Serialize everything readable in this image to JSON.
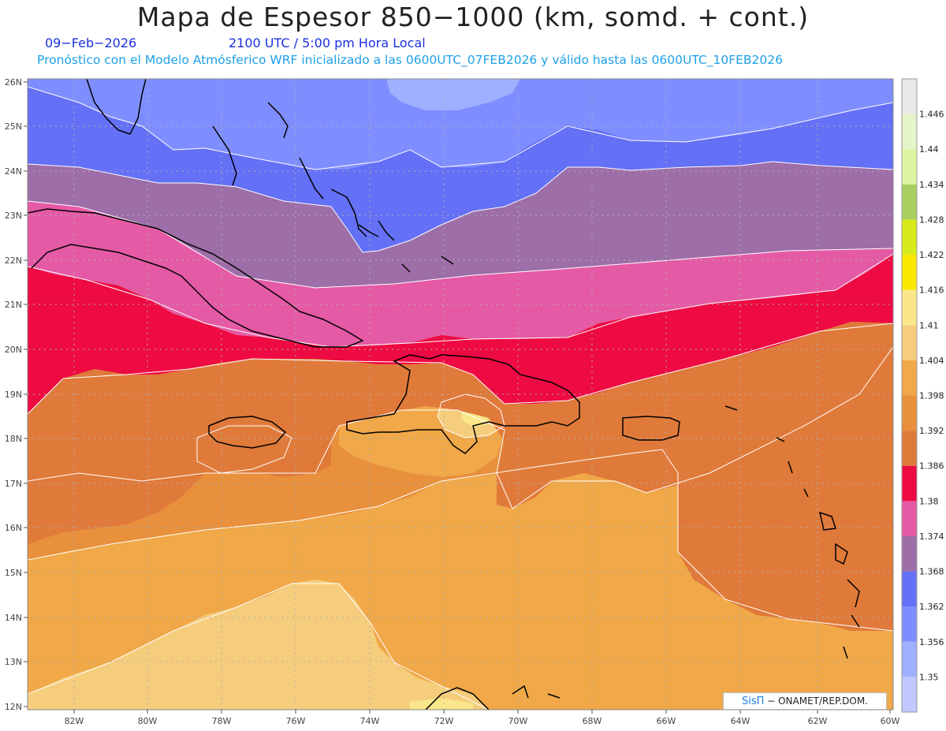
{
  "header": {
    "title": "Mapa de Espesor 850−1000 (km, somd. + cont.)",
    "date": "09−Feb−2026",
    "time": "2100 UTC / 5:00 pm Hora Local",
    "forecast_line": "Pronóstico con el Modelo Atmósferico WRF inicializado a las 0600UTC_07FEB2026 y válido hasta las  0600UTC_10FEB2026"
  },
  "axes": {
    "lat_labels": [
      "26N",
      "25N",
      "24N",
      "23N",
      "22N",
      "21N",
      "20N",
      "19N",
      "18N",
      "17N",
      "16N",
      "15N",
      "14N",
      "13N",
      "12N"
    ],
    "lon_labels": [
      "82W",
      "80W",
      "78W",
      "76W",
      "74W",
      "72W",
      "70W",
      "68W",
      "66W",
      "64W",
      "62W",
      "60W"
    ]
  },
  "legend": {
    "levels": [
      "1.35",
      "1.356",
      "1.362",
      "1.368",
      "1.374",
      "1.38",
      "1.386",
      "1.392",
      "1.398",
      "1.404",
      "1.41",
      "1.416",
      "1.422",
      "1.428",
      "1.434",
      "1.44",
      "1.446"
    ],
    "colors": [
      "#c0c8ff",
      "#9eb0ff",
      "#7f8eff",
      "#6470f5",
      "#9e6ea8",
      "#e55aa5",
      "#ee0a42",
      "#e07a3a",
      "#e8903c",
      "#f0a848",
      "#f5cd7c",
      "#fae78a",
      "#fae800",
      "#d8ea1a",
      "#a8d060",
      "#ddf5a0",
      "#e6f5c8",
      "#e8e8e8"
    ]
  },
  "credit": {
    "logo": "SisΠ",
    "text": "− ONAMET/REP.DOM."
  }
}
